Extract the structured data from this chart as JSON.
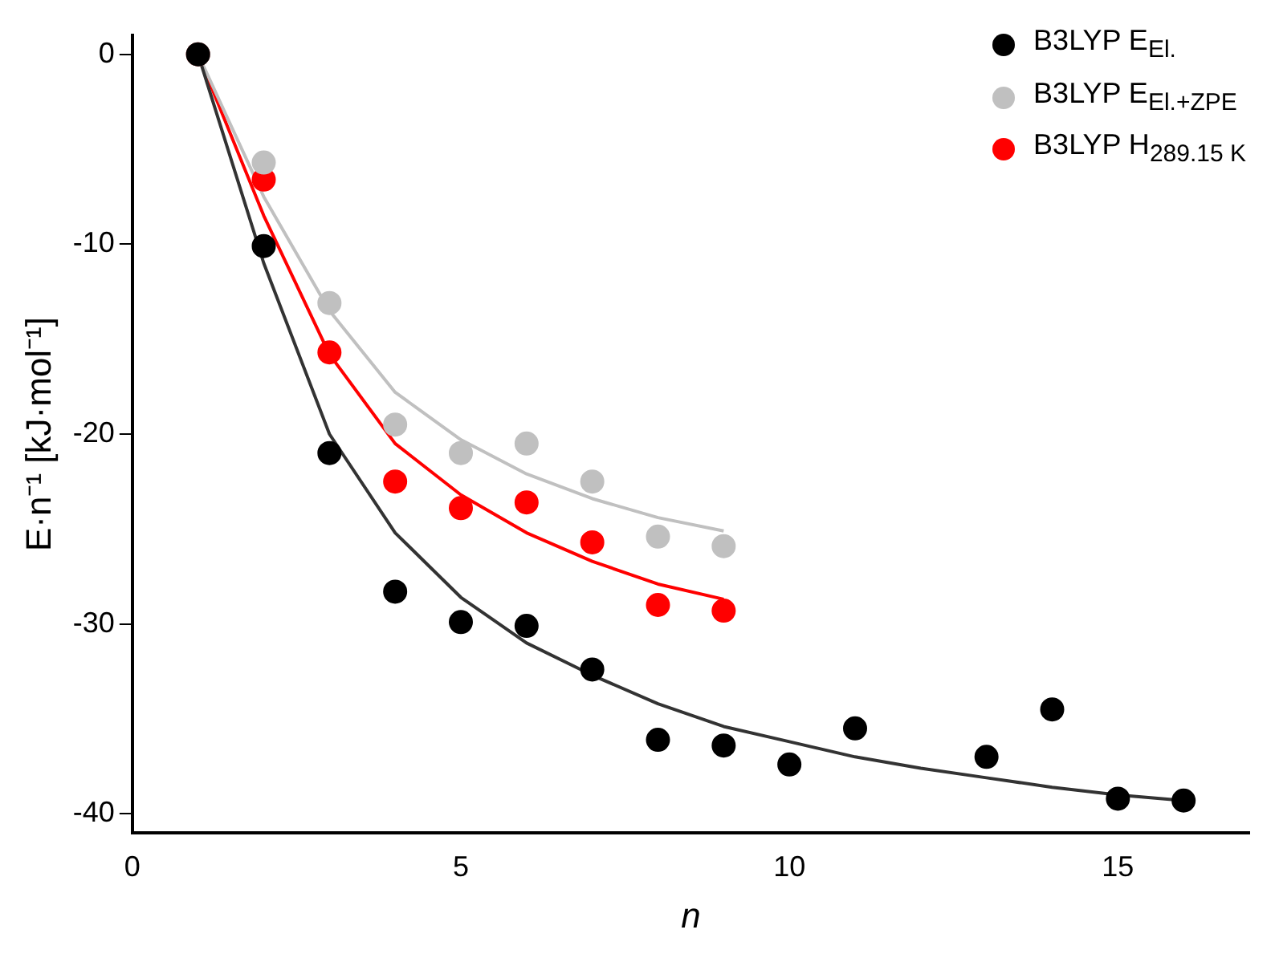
{
  "chart_data": {
    "type": "scatter",
    "xlabel": "n",
    "ylabel": "E·n⁻¹ [kJ·mol⁻¹]",
    "xlim": [
      0,
      17
    ],
    "xticks": [
      0,
      5,
      10,
      15
    ],
    "ylim": [
      -41,
      1
    ],
    "yticks": [
      0,
      -10,
      -20,
      -30,
      -40
    ],
    "grid": false,
    "legend": "top right",
    "series": [
      {
        "name": "B3LYP E$_{El.}$",
        "color": "#000000",
        "marker": "circle",
        "x": [
          1,
          2,
          3,
          4,
          5,
          6,
          7,
          8,
          9,
          10,
          11,
          13,
          14,
          15,
          16
        ],
        "values": [
          0,
          -10.1,
          -21.0,
          -28.3,
          -29.9,
          -30.1,
          -32.4,
          -36.1,
          -36.4,
          -37.4,
          -35.5,
          -37.0,
          -34.5,
          -39.2,
          -39.3
        ]
      },
      {
        "name": "B3LYP E$_{El.+ZPE}$",
        "color": "#c0c0c0",
        "marker": "circle",
        "x": [
          1,
          2,
          3,
          4,
          5,
          6,
          7,
          8,
          9
        ],
        "values": [
          0,
          -5.7,
          -13.1,
          -19.5,
          -21.0,
          -20.5,
          -22.5,
          -25.4,
          -25.9
        ]
      },
      {
        "name": "B3LYP H$_{289.15 K}$",
        "color": "#ff0000",
        "marker": "circle",
        "x": [
          1,
          2,
          3,
          4,
          5,
          6,
          7,
          8,
          9
        ],
        "values": [
          0,
          -6.6,
          -15.7,
          -22.5,
          -23.9,
          -23.6,
          -25.7,
          -29.0,
          -29.3
        ]
      },
      {
        "color": "#333333",
        "type": "line",
        "marker": "none",
        "x": [
          1,
          2,
          3,
          4,
          5,
          6,
          7,
          8,
          9,
          10,
          11,
          12,
          13,
          14,
          15,
          16
        ],
        "values": [
          0,
          -11,
          -20,
          -25.2,
          -28.6,
          -31,
          -32.7,
          -34.2,
          -35.4,
          -36.2,
          -37,
          -37.6,
          -38.1,
          -38.6,
          -39,
          -39.3
        ]
      },
      {
        "color": "#c0c0c0",
        "type": "line",
        "marker": "none",
        "x": [
          1,
          2,
          3,
          4,
          5,
          6,
          7,
          8,
          9
        ],
        "values": [
          0,
          -7.5,
          -13.5,
          -17.8,
          -20.3,
          -22.1,
          -23.4,
          -24.4,
          -25.1
        ]
      },
      {
        "color": "#ff0000",
        "type": "line",
        "marker": "none",
        "x": [
          1,
          2,
          3,
          4,
          5,
          6,
          7,
          8,
          9
        ],
        "values": [
          0,
          -8.5,
          -15.8,
          -20.5,
          -23.2,
          -25.2,
          -26.7,
          -27.9,
          -28.7
        ]
      }
    ]
  }
}
